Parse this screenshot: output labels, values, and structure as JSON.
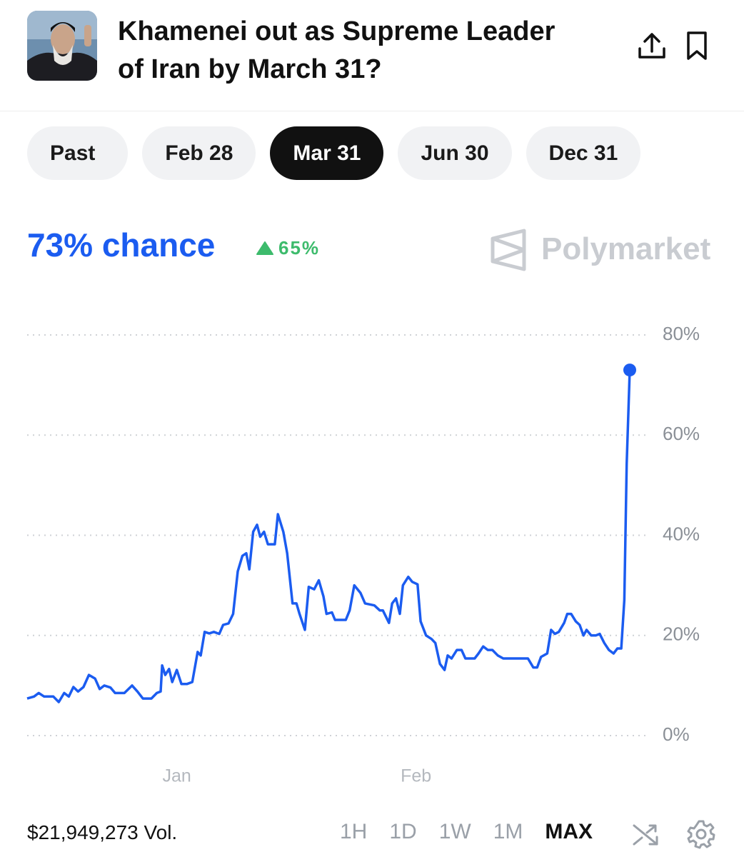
{
  "header": {
    "title": "Khamenei out as Supreme Leader of Iran by March 31?"
  },
  "tabs": {
    "items": [
      "Past",
      "Feb 28",
      "Mar 31",
      "Jun 30",
      "Dec 31"
    ],
    "selected": 2
  },
  "market": {
    "chance": "73% chance",
    "change": "65%",
    "brand": "Polymarket"
  },
  "chart_data": {
    "type": "line",
    "color": "#1b5cf0",
    "x": [
      -19.4,
      -18.5,
      -17.9,
      -17.2,
      -16.0,
      -15.3,
      -14.6,
      -14.0,
      -13.4,
      -12.8,
      -12.1,
      -11.4,
      -10.6,
      -10.0,
      -9.4,
      -8.6,
      -8.0,
      -6.8,
      -5.8,
      -5.1,
      -4.4,
      -3.3,
      -2.6,
      -2.1,
      -1.9,
      -1.5,
      -1.0,
      -0.6,
      0,
      0.6,
      1.3,
      2.0,
      2.7,
      3.1,
      3.6,
      4.2,
      4.8,
      5.5,
      6.0,
      6.7,
      7.3,
      7.9,
      8.5,
      9.0,
      9.4,
      9.9,
      10.4,
      10.8,
      11.3,
      11.8,
      12.7,
      13.1,
      13.8,
      14.3,
      15.0,
      15.5,
      15.9,
      16.6,
      17.1,
      17.8,
      18.4,
      19.0,
      19.4,
      20.1,
      20.5,
      21.9,
      22.4,
      23.0,
      23.8,
      24.4,
      25.6,
      26.3,
      26.7,
      27.5,
      27.9,
      28.4,
      28.9,
      29.3,
      30.0,
      30.5,
      31.2,
      31.6,
      32.3,
      33.0,
      33.5,
      34.1,
      34.7,
      35.1,
      35.6,
      36.3,
      36.9,
      37.4,
      38.6,
      39.1,
      39.7,
      40.3,
      40.9,
      41.6,
      42.3,
      45.5,
      46.2,
      46.7,
      47.2,
      48.0,
      48.5,
      49.0,
      49.5,
      50.2,
      50.6,
      51.1,
      51.7,
      52.2,
      52.7,
      53.1,
      53.7,
      54.3,
      54.8,
      55.4,
      56.0,
      56.6,
      57.1,
      57.6,
      58.0,
      58.3,
      58.7
    ],
    "values": [
      7.4,
      7.8,
      8.5,
      7.8,
      7.8,
      6.7,
      8.5,
      7.8,
      9.7,
      8.8,
      9.7,
      12.1,
      11.4,
      9.3,
      10,
      9.6,
      8.5,
      8.5,
      10,
      8.8,
      7.4,
      7.4,
      8.5,
      8.8,
      14,
      12.1,
      13.3,
      10.7,
      13.1,
      10.3,
      10.3,
      10.7,
      16.7,
      16,
      20.7,
      20.4,
      20.7,
      20.3,
      22.1,
      22.4,
      24.3,
      32.8,
      35.9,
      36.4,
      33.2,
      40.7,
      42.1,
      39.7,
      40.7,
      38.2,
      38.2,
      44.2,
      40.7,
      36.4,
      26.4,
      26.4,
      24.3,
      21.1,
      29.7,
      29.2,
      31,
      27.8,
      24.3,
      24.6,
      23.1,
      23.1,
      25,
      30,
      28.5,
      26.4,
      26,
      25,
      25,
      22.5,
      26.4,
      27.4,
      24.3,
      30,
      31.7,
      30.7,
      30.2,
      22.8,
      20,
      19.3,
      18.5,
      14.3,
      13.1,
      16,
      15.4,
      17.1,
      17.1,
      15.4,
      15.4,
      16.4,
      17.8,
      17.1,
      17.1,
      16,
      15.4,
      15.4,
      13.6,
      13.6,
      15.7,
      16.4,
      21.1,
      20.3,
      20.7,
      22.5,
      24.3,
      24.3,
      22.8,
      22.1,
      20,
      21.1,
      20,
      20,
      20.3,
      18.5,
      17.1,
      16.4,
      17.4,
      17.4,
      27.1,
      54.2,
      73
    ],
    "xlim": [
      -19.4,
      58.7
    ],
    "xticks": [
      {
        "value": 0,
        "label": "Jan"
      },
      {
        "value": 31,
        "label": "Feb"
      }
    ],
    "ylim": [
      0,
      80
    ],
    "yticks": [
      {
        "value": 0,
        "label": "0%"
      },
      {
        "value": 20,
        "label": "20%"
      },
      {
        "value": 40,
        "label": "40%"
      },
      {
        "value": 60,
        "label": "60%"
      },
      {
        "value": 80,
        "label": "80%"
      }
    ],
    "grid": true
  },
  "footer": {
    "volume": "$21,949,273 Vol.",
    "ranges": [
      "1H",
      "1D",
      "1W",
      "1M",
      "MAX"
    ],
    "selected": 4
  }
}
